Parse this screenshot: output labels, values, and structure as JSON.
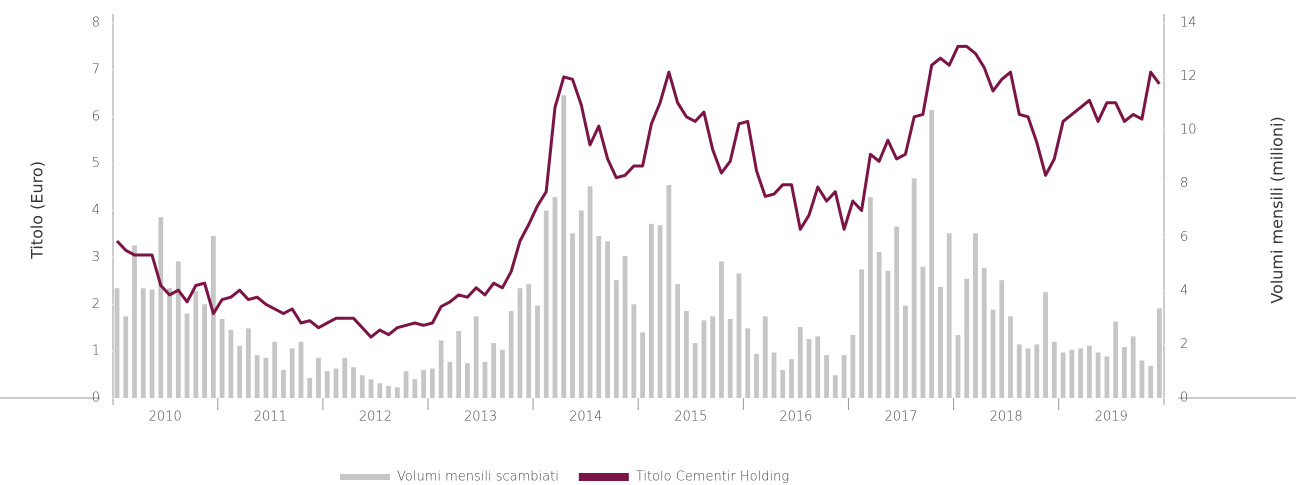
{
  "chart_data": {
    "type": "bar_line",
    "y_label": "Titolo (Euro)",
    "y2_label": "Volumi mensili (milioni)",
    "categories": [
      null,
      null,
      null,
      null,
      null,
      "2010",
      null,
      null,
      null,
      null,
      null,
      null,
      null,
      null,
      null,
      null,
      null,
      "2011",
      null,
      null,
      null,
      null,
      null,
      null,
      null,
      null,
      null,
      null,
      null,
      "2012",
      null,
      null,
      null,
      null,
      null,
      null,
      null,
      null,
      null,
      null,
      null,
      "2013",
      null,
      null,
      null,
      null,
      null,
      null,
      null,
      null,
      null,
      null,
      null,
      "2014",
      null,
      null,
      null,
      null,
      null,
      null,
      null,
      null,
      null,
      null,
      null,
      "2015",
      null,
      null,
      null,
      null,
      null,
      null,
      null,
      null,
      null,
      null,
      null,
      "2016",
      null,
      null,
      null,
      null,
      null,
      null,
      null,
      null,
      null,
      null,
      null,
      "2017",
      null,
      null,
      null,
      null,
      null,
      null,
      null,
      null,
      null,
      null,
      null,
      "2018",
      null,
      null,
      null,
      null,
      null,
      null,
      null,
      null,
      null,
      null,
      null,
      "2019",
      null,
      null,
      null,
      null,
      null,
      null
    ],
    "series": [
      {
        "name": "Volumi mensili scambiati",
        "type": "bar",
        "axis": "y2",
        "color": "#c6c6c6",
        "values": [
          4.1,
          3.05,
          5.7,
          4.1,
          4.05,
          6.75,
          4.1,
          5.1,
          3.15,
          4.0,
          3.5,
          6.05,
          2.95,
          2.55,
          1.95,
          2.6,
          1.6,
          1.5,
          2.1,
          1.05,
          1.85,
          2.1,
          0.75,
          1.5,
          1.0,
          1.1,
          1.5,
          1.15,
          0.85,
          0.7,
          0.55,
          0.45,
          0.4,
          1.0,
          0.7,
          1.05,
          1.1,
          2.15,
          1.35,
          2.5,
          1.3,
          3.05,
          1.35,
          2.05,
          1.8,
          3.25,
          4.1,
          4.25,
          3.45,
          7.0,
          7.5,
          11.3,
          6.15,
          7.0,
          7.9,
          6.05,
          5.85,
          4.4,
          5.3,
          3.5,
          2.45,
          6.5,
          6.45,
          7.95,
          4.25,
          3.25,
          2.05,
          2.9,
          3.05,
          5.1,
          2.95,
          4.65,
          2.6,
          1.65,
          3.05,
          1.7,
          1.05,
          1.45,
          2.65,
          2.2,
          2.3,
          1.6,
          0.85,
          1.6,
          2.35,
          4.8,
          7.5,
          5.45,
          4.75,
          6.4,
          3.45,
          8.2,
          4.9,
          10.75,
          4.15,
          6.15,
          2.35,
          4.45,
          6.15,
          4.85,
          3.3,
          4.4,
          3.05,
          2.0,
          1.85,
          2.0,
          3.95,
          2.1,
          1.7,
          1.8,
          1.85,
          1.95,
          1.7,
          1.55,
          2.85,
          1.9,
          2.3,
          1.4,
          1.2,
          3.35
        ]
      },
      {
        "name": "Titolo Cementir Holding",
        "type": "line",
        "axis": "y",
        "color": "#7a1546",
        "values": [
          3.35,
          3.15,
          3.05,
          3.05,
          3.05,
          2.4,
          2.2,
          2.3,
          2.05,
          2.4,
          2.45,
          1.8,
          2.1,
          2.15,
          2.3,
          2.1,
          2.15,
          2.0,
          1.9,
          1.8,
          1.9,
          1.6,
          1.65,
          1.5,
          1.6,
          1.7,
          1.7,
          1.7,
          1.5,
          1.3,
          1.45,
          1.35,
          1.5,
          1.55,
          1.6,
          1.55,
          1.6,
          1.95,
          2.05,
          2.2,
          2.15,
          2.35,
          2.2,
          2.45,
          2.35,
          2.7,
          3.35,
          3.7,
          4.1,
          4.4,
          6.2,
          6.85,
          6.8,
          6.25,
          5.4,
          5.8,
          5.1,
          4.7,
          4.75,
          4.95,
          4.95,
          5.85,
          6.3,
          6.95,
          6.3,
          6.0,
          5.9,
          6.1,
          5.3,
          4.8,
          5.05,
          5.85,
          5.9,
          4.85,
          4.3,
          4.35,
          4.55,
          4.55,
          3.6,
          3.9,
          4.5,
          4.2,
          4.4,
          3.6,
          4.2,
          4.0,
          5.2,
          5.05,
          5.5,
          5.1,
          5.2,
          6.0,
          6.05,
          7.1,
          7.25,
          7.1,
          7.5,
          7.5,
          7.35,
          7.05,
          6.55,
          6.8,
          6.95,
          6.05,
          6.0,
          5.45,
          4.75,
          5.1,
          5.9,
          6.05,
          6.2,
          6.35,
          5.9,
          6.3,
          6.3,
          5.9,
          6.05,
          5.95,
          6.95,
          6.7
        ]
      }
    ],
    "ylim": [
      0,
      8
    ],
    "yticks": [
      0,
      1,
      2,
      3,
      4,
      5,
      6,
      7,
      8
    ],
    "y2lim": [
      0,
      14
    ],
    "y2ticks": [
      0,
      2,
      4,
      6,
      8,
      10,
      12,
      14
    ],
    "legend": "bottom"
  }
}
